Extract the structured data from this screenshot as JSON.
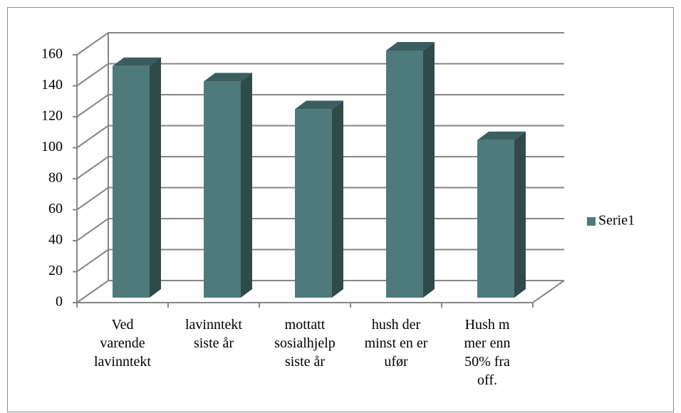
{
  "chart_data": {
    "type": "bar3d",
    "categories": [
      "Ved varende lavinntekt",
      "lavinntekt siste år",
      "mottatt sosialhjelp siste år",
      "hush der minst en er ufør",
      "Hush m mer enn 50% fra off."
    ],
    "series": [
      {
        "name": "Serie1",
        "color": "#4f7a7b",
        "values": [
          150,
          140,
          122,
          160,
          102
        ]
      }
    ],
    "ylim": [
      0,
      160
    ],
    "yticks": [
      0,
      20,
      40,
      60,
      80,
      100,
      120,
      140,
      160
    ],
    "grid": true,
    "legend": "right"
  }
}
